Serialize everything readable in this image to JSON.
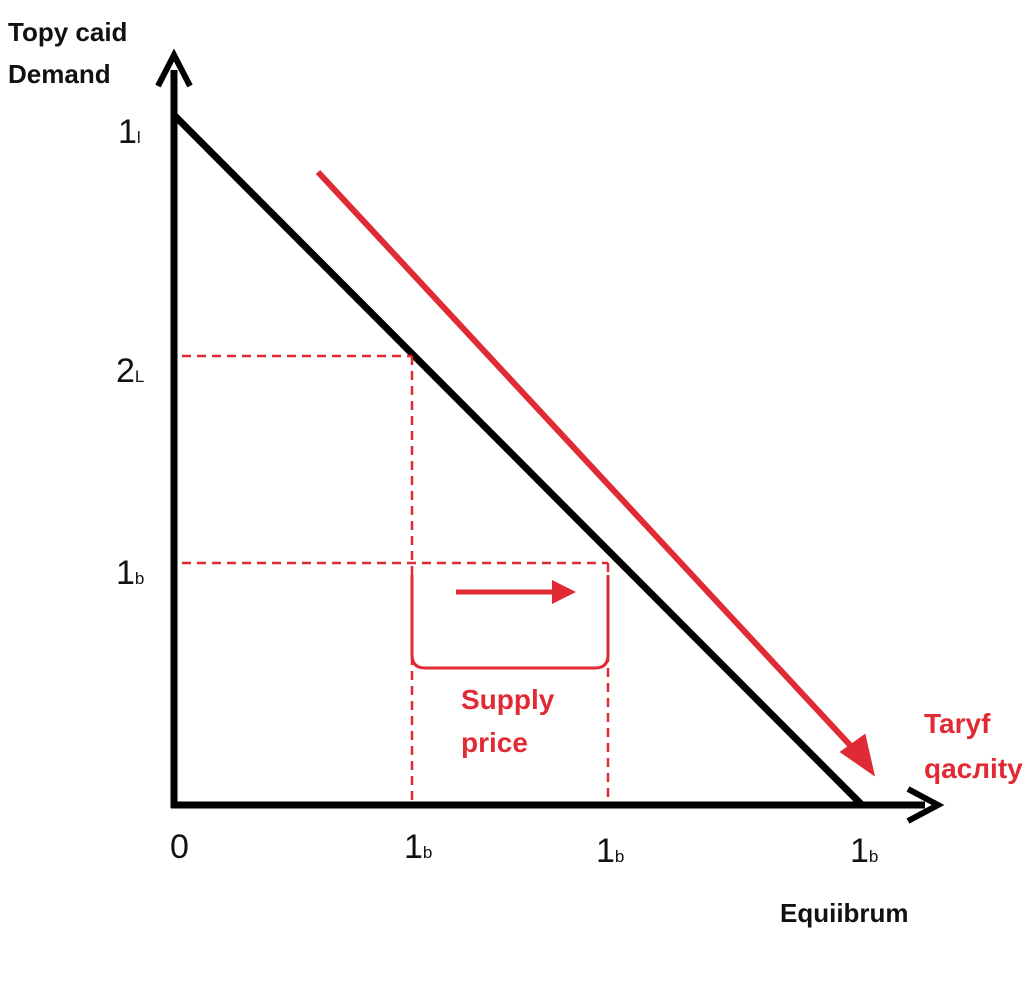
{
  "y_axis_title": [
    "Topy caid",
    "Demand"
  ],
  "x_axis_title": "Equiibrum",
  "y_ticks": [
    {
      "main": "1",
      "sub": "l"
    },
    {
      "main": "2",
      "sub": "L"
    },
    {
      "main": "1",
      "sub": "b"
    }
  ],
  "x_ticks": [
    {
      "main": "0",
      "sub": ""
    },
    {
      "main": "1",
      "sub": "b"
    },
    {
      "main": "1",
      "sub": "b"
    },
    {
      "main": "1",
      "sub": "b"
    }
  ],
  "bracket_label": [
    "Supply",
    "price"
  ],
  "curve_label": [
    "Taryf",
    "qaслity"
  ]
}
